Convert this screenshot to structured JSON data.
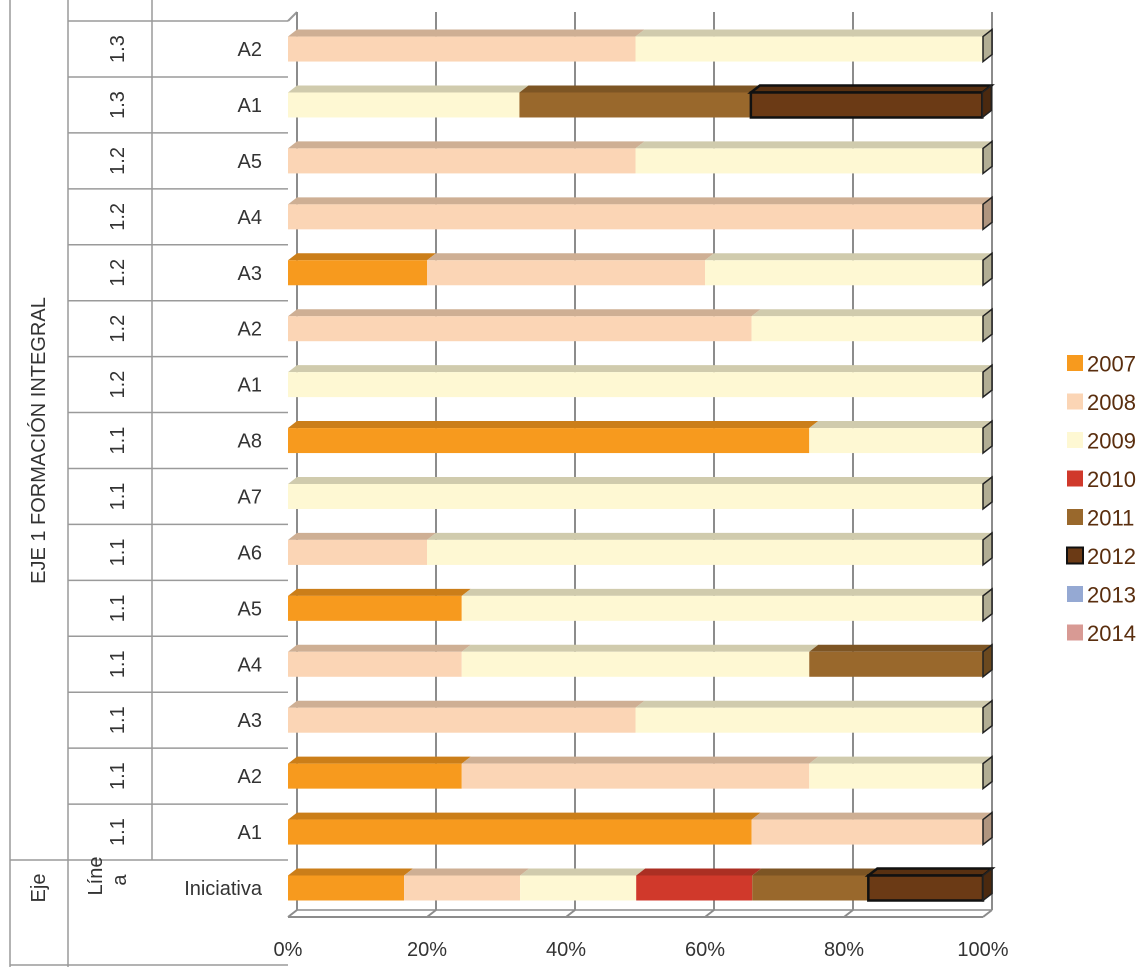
{
  "chart_data": {
    "type": "bar",
    "orientation": "horizontal",
    "stacking": "percent",
    "style": "3d",
    "grid": true,
    "legend_position": "right",
    "xlim": [
      0,
      100
    ],
    "x_ticks": [
      "0%",
      "20%",
      "40%",
      "60%",
      "80%",
      "100%"
    ],
    "group_label": "EJE 1 FORMACIÓN INTEGRAL",
    "header": {
      "eje": "Eje",
      "linea_line1": "Líne",
      "linea_line2": "a",
      "iniciativa": "Iniciativa"
    },
    "categories": [
      {
        "linea": "",
        "iniciativa": "Iniciativa"
      },
      {
        "linea": "1.1",
        "iniciativa": "A1"
      },
      {
        "linea": "1.1",
        "iniciativa": "A2"
      },
      {
        "linea": "1.1",
        "iniciativa": "A3"
      },
      {
        "linea": "1.1",
        "iniciativa": "A4"
      },
      {
        "linea": "1.1",
        "iniciativa": "A5"
      },
      {
        "linea": "1.1",
        "iniciativa": "A6"
      },
      {
        "linea": "1.1",
        "iniciativa": "A7"
      },
      {
        "linea": "1.1",
        "iniciativa": "A8"
      },
      {
        "linea": "1.2",
        "iniciativa": "A1"
      },
      {
        "linea": "1.2",
        "iniciativa": "A2"
      },
      {
        "linea": "1.2",
        "iniciativa": "A3"
      },
      {
        "linea": "1.2",
        "iniciativa": "A4"
      },
      {
        "linea": "1.2",
        "iniciativa": "A5"
      },
      {
        "linea": "1.3",
        "iniciativa": "A1"
      },
      {
        "linea": "1.3",
        "iniciativa": "A2"
      }
    ],
    "series": [
      {
        "name": "2007",
        "color": "#F79A1E",
        "values": [
          16.7,
          66.7,
          25,
          0,
          0,
          25,
          0,
          0,
          75,
          0,
          0,
          20,
          0,
          0,
          0,
          0
        ]
      },
      {
        "name": "2008",
        "color": "#FBD5B5",
        "values": [
          16.7,
          33.3,
          50,
          50,
          25,
          0,
          20,
          0,
          0,
          0,
          66.7,
          40,
          100,
          50,
          0,
          50
        ]
      },
      {
        "name": "2009",
        "color": "#FEF8D3",
        "values": [
          16.7,
          0,
          25,
          50,
          50,
          75,
          80,
          100,
          25,
          100,
          33.3,
          40,
          0,
          50,
          33.3,
          50
        ]
      },
      {
        "name": "2010",
        "color": "#D0392B",
        "values": [
          16.7,
          0,
          0,
          0,
          0,
          0,
          0,
          0,
          0,
          0,
          0,
          0,
          0,
          0,
          0,
          0
        ]
      },
      {
        "name": "2011",
        "color": "#99682C",
        "values": [
          16.7,
          0,
          0,
          0,
          25,
          0,
          0,
          0,
          0,
          0,
          0,
          0,
          0,
          0,
          33.3,
          0
        ]
      },
      {
        "name": "2012",
        "color": "#6B3A15",
        "outline": true,
        "values": [
          16.5,
          0,
          0,
          0,
          0,
          0,
          0,
          0,
          0,
          0,
          0,
          0,
          0,
          0,
          33.3,
          0
        ]
      },
      {
        "name": "2013",
        "color": "#95A9D3",
        "values": [
          0,
          0,
          0,
          0,
          0,
          0,
          0,
          0,
          0,
          0,
          0,
          0,
          0,
          0,
          0,
          0
        ]
      },
      {
        "name": "2014",
        "color": "#D89A94",
        "values": [
          0,
          0,
          0,
          0,
          0,
          0,
          0,
          0,
          0,
          0,
          0,
          0,
          0,
          0,
          0,
          0
        ]
      }
    ]
  }
}
